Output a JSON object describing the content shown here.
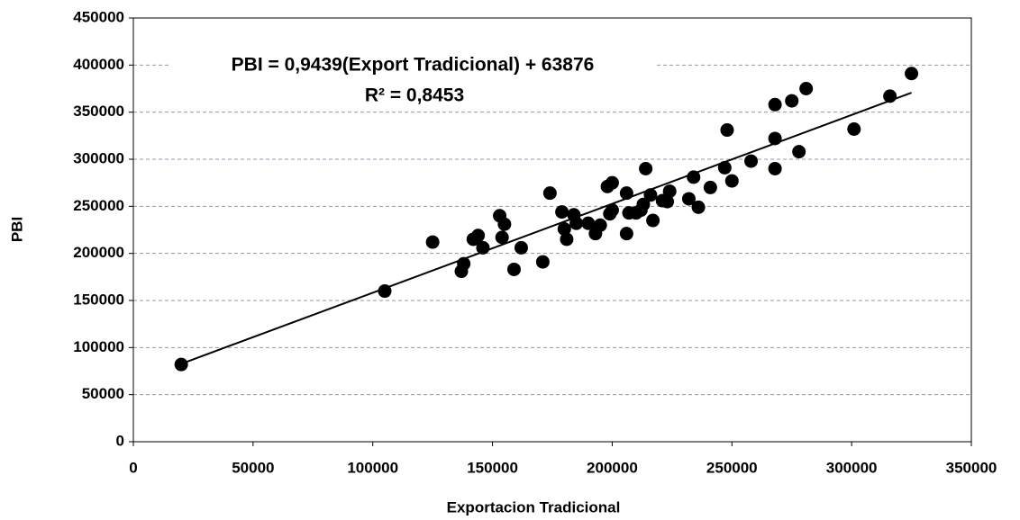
{
  "chart_data": {
    "type": "scatter",
    "annotations": [
      "PBI = 0,9439(Export Tradicional) + 63876",
      "R² = 0,8453"
    ],
    "x_label": "Exportacion Tradicional",
    "y_label": "PBI",
    "x": [
      20000,
      105000,
      125000,
      137000,
      138000,
      142000,
      144000,
      146000,
      153000,
      154000,
      155000,
      159000,
      162000,
      171000,
      174000,
      179000,
      180000,
      181000,
      184000,
      185000,
      190000,
      193000,
      195000,
      198000,
      199000,
      200000,
      200000,
      206000,
      206000,
      207000,
      210000,
      212000,
      213000,
      214000,
      216000,
      217000,
      221000,
      223000,
      224000,
      232000,
      234000,
      236000,
      241000,
      247000,
      248000,
      250000,
      258000,
      268000,
      268000,
      268000,
      275000,
      278000,
      281000,
      301000,
      316000,
      325000
    ],
    "values": [
      82000,
      160000,
      212000,
      181000,
      189000,
      215000,
      219000,
      206000,
      240000,
      217000,
      231000,
      183000,
      206000,
      191000,
      264000,
      244000,
      226000,
      215000,
      241000,
      232000,
      232000,
      221000,
      230000,
      271000,
      242000,
      246000,
      275000,
      264000,
      221000,
      243000,
      243000,
      246000,
      252000,
      290000,
      262000,
      235000,
      256000,
      255000,
      266000,
      258000,
      281000,
      249000,
      270000,
      291000,
      331000,
      277000,
      298000,
      358000,
      322000,
      290000,
      362000,
      308000,
      375000,
      332000,
      367000,
      391000
    ],
    "color": "#000000",
    "trendline": {
      "x": [
        20000,
        325000
      ],
      "y": [
        82754,
        370643
      ]
    },
    "xlim": [
      0,
      350000
    ],
    "ylim": [
      0,
      450000
    ],
    "xticks": [
      0,
      50000,
      100000,
      150000,
      200000,
      250000,
      300000,
      350000
    ],
    "yticks": [
      0,
      50000,
      100000,
      150000,
      200000,
      250000,
      300000,
      350000,
      400000,
      450000
    ],
    "grid": true
  }
}
